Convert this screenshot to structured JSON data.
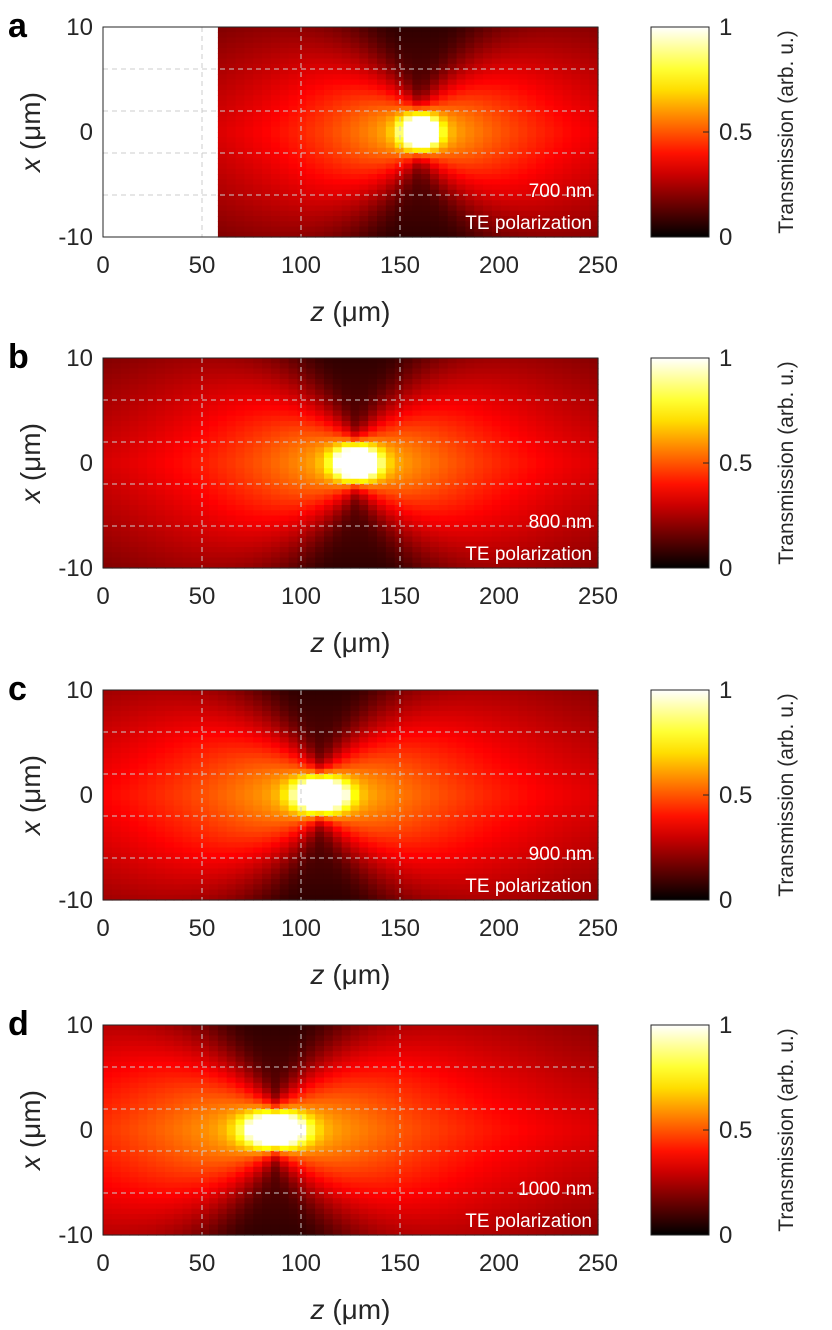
{
  "chart_data": [
    {
      "type": "heatmap",
      "panel_label": "a",
      "wavelength_label": "700 nm",
      "polarization_label": "TE polarization",
      "xlabel_var": "z",
      "xlabel_unit": " (μm)",
      "ylabel_var": "x",
      "ylabel_unit": " (μm)",
      "xlim": [
        0,
        250
      ],
      "ylim": [
        -10,
        10
      ],
      "xticks": [
        "0",
        "50",
        "100",
        "150",
        "200",
        "250"
      ],
      "yticks": [
        "-10",
        "0",
        "10"
      ],
      "x_gridlines": [
        50,
        100,
        150
      ],
      "y_gridlines": [
        -6,
        -2,
        2,
        6
      ],
      "data_start_z": 60,
      "focus": {
        "z": 160,
        "x": 0
      },
      "spread": 50,
      "colorbar": {
        "label": "Transmission (arb. u.)",
        "ticks": [
          "0",
          "0.5",
          "1"
        ],
        "range": [
          0,
          1
        ]
      }
    },
    {
      "type": "heatmap",
      "panel_label": "b",
      "wavelength_label": "800 nm",
      "polarization_label": "TE polarization",
      "xlabel_var": "z",
      "xlabel_unit": " (μm)",
      "ylabel_var": "x",
      "ylabel_unit": " (μm)",
      "xlim": [
        0,
        250
      ],
      "ylim": [
        -10,
        10
      ],
      "xticks": [
        "0",
        "50",
        "100",
        "150",
        "200",
        "250"
      ],
      "yticks": [
        "-10",
        "0",
        "10"
      ],
      "x_gridlines": [
        50,
        100,
        150
      ],
      "y_gridlines": [
        -6,
        -2,
        2,
        6
      ],
      "data_start_z": 0,
      "focus": {
        "z": 128,
        "x": 0
      },
      "spread": 60,
      "colorbar": {
        "label": "Transmission (arb. u.)",
        "ticks": [
          "0",
          "0.5",
          "1"
        ],
        "range": [
          0,
          1
        ]
      }
    },
    {
      "type": "heatmap",
      "panel_label": "c",
      "wavelength_label": "900 nm",
      "polarization_label": "TE polarization",
      "xlabel_var": "z",
      "xlabel_unit": " (μm)",
      "ylabel_var": "x",
      "ylabel_unit": " (μm)",
      "xlim": [
        0,
        250
      ],
      "ylim": [
        -10,
        10
      ],
      "xticks": [
        "0",
        "50",
        "100",
        "150",
        "200",
        "250"
      ],
      "yticks": [
        "-10",
        "0",
        "10"
      ],
      "x_gridlines": [
        50,
        100,
        150
      ],
      "y_gridlines": [
        -6,
        -2,
        2,
        6
      ],
      "data_start_z": 0,
      "focus": {
        "z": 110,
        "x": 0
      },
      "spread": 70,
      "colorbar": {
        "label": "Transmission (arb. u.)",
        "ticks": [
          "0",
          "0.5",
          "1"
        ],
        "range": [
          0,
          1
        ]
      }
    },
    {
      "type": "heatmap",
      "panel_label": "d",
      "wavelength_label": "1000 nm",
      "polarization_label": "TE polarization",
      "xlabel_var": "z",
      "xlabel_unit": " (μm)",
      "ylabel_var": "x",
      "ylabel_unit": " (μm)",
      "xlim": [
        0,
        250
      ],
      "ylim": [
        -10,
        10
      ],
      "xticks": [
        "0",
        "50",
        "100",
        "150",
        "200",
        "250"
      ],
      "yticks": [
        "-10",
        "0",
        "10"
      ],
      "x_gridlines": [
        50,
        100,
        150
      ],
      "y_gridlines": [
        -6,
        -2,
        2,
        6
      ],
      "data_start_z": 0,
      "focus": {
        "z": 87,
        "x": 0
      },
      "spread": 80,
      "colorbar": {
        "label": "Transmission (arb. u.)",
        "ticks": [
          "0",
          "0.5",
          "1"
        ],
        "range": [
          0,
          1
        ]
      }
    }
  ],
  "colormap": "hot",
  "colors": {
    "gridline": "#cccccc",
    "axis": "#262626",
    "annotation": "#ffffff"
  }
}
